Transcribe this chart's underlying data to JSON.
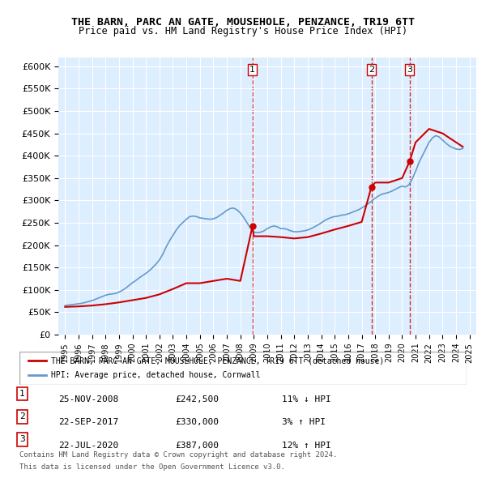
{
  "title": "THE BARN, PARC AN GATE, MOUSEHOLE, PENZANCE, TR19 6TT",
  "subtitle": "Price paid vs. HM Land Registry's House Price Index (HPI)",
  "legend_line1": "THE BARN, PARC AN GATE, MOUSEHOLE, PENZANCE, TR19 6TT (detached house)",
  "legend_line2": "HPI: Average price, detached house, Cornwall",
  "footer1": "Contains HM Land Registry data © Crown copyright and database right 2024.",
  "footer2": "This data is licensed under the Open Government Licence v3.0.",
  "transactions": [
    {
      "num": 1,
      "date": "25-NOV-2008",
      "price": 242500,
      "pct": "11%",
      "dir": "↓"
    },
    {
      "num": 2,
      "date": "22-SEP-2017",
      "price": 330000,
      "pct": "3%",
      "dir": "↑"
    },
    {
      "num": 3,
      "date": "22-JUL-2020",
      "price": 387000,
      "pct": "12%",
      "dir": "↑"
    }
  ],
  "transaction_dates_decimal": [
    2008.9,
    2017.72,
    2020.55
  ],
  "red_color": "#cc0000",
  "blue_color": "#6699cc",
  "hpi_color": "#5588bb",
  "background_chart": "#ddeeff",
  "ylim": [
    0,
    620000
  ],
  "yticks": [
    0,
    50000,
    100000,
    150000,
    200000,
    250000,
    300000,
    350000,
    400000,
    450000,
    500000,
    550000,
    600000
  ],
  "xlim_start": 1994.5,
  "xlim_end": 2025.5,
  "hpi_data": {
    "dates": [
      1995.0,
      1995.25,
      1995.5,
      1995.75,
      1996.0,
      1996.25,
      1996.5,
      1996.75,
      1997.0,
      1997.25,
      1997.5,
      1997.75,
      1998.0,
      1998.25,
      1998.5,
      1998.75,
      1999.0,
      1999.25,
      1999.5,
      1999.75,
      2000.0,
      2000.25,
      2000.5,
      2000.75,
      2001.0,
      2001.25,
      2001.5,
      2001.75,
      2002.0,
      2002.25,
      2002.5,
      2002.75,
      2003.0,
      2003.25,
      2003.5,
      2003.75,
      2004.0,
      2004.25,
      2004.5,
      2004.75,
      2005.0,
      2005.25,
      2005.5,
      2005.75,
      2006.0,
      2006.25,
      2006.5,
      2006.75,
      2007.0,
      2007.25,
      2007.5,
      2007.75,
      2008.0,
      2008.25,
      2008.5,
      2008.75,
      2009.0,
      2009.25,
      2009.5,
      2009.75,
      2010.0,
      2010.25,
      2010.5,
      2010.75,
      2011.0,
      2011.25,
      2011.5,
      2011.75,
      2012.0,
      2012.25,
      2012.5,
      2012.75,
      2013.0,
      2013.25,
      2013.5,
      2013.75,
      2014.0,
      2014.25,
      2014.5,
      2014.75,
      2015.0,
      2015.25,
      2015.5,
      2015.75,
      2016.0,
      2016.25,
      2016.5,
      2016.75,
      2017.0,
      2017.25,
      2017.5,
      2017.75,
      2018.0,
      2018.25,
      2018.5,
      2018.75,
      2019.0,
      2019.25,
      2019.5,
      2019.75,
      2020.0,
      2020.25,
      2020.5,
      2020.75,
      2021.0,
      2021.25,
      2021.5,
      2021.75,
      2022.0,
      2022.25,
      2022.5,
      2022.75,
      2023.0,
      2023.25,
      2023.5,
      2023.75,
      2024.0,
      2024.25,
      2024.5
    ],
    "values": [
      65000,
      66000,
      67000,
      68000,
      69000,
      70000,
      72000,
      74000,
      76000,
      79000,
      82000,
      85000,
      88000,
      90000,
      91000,
      92000,
      95000,
      99000,
      104000,
      110000,
      116000,
      121000,
      127000,
      132000,
      137000,
      143000,
      150000,
      158000,
      167000,
      180000,
      196000,
      210000,
      222000,
      234000,
      244000,
      251000,
      258000,
      264000,
      265000,
      264000,
      261000,
      260000,
      259000,
      258000,
      259000,
      262000,
      267000,
      272000,
      278000,
      282000,
      283000,
      279000,
      272000,
      262000,
      250000,
      238000,
      229000,
      228000,
      229000,
      232000,
      237000,
      241000,
      243000,
      241000,
      237000,
      237000,
      235000,
      232000,
      230000,
      230000,
      231000,
      232000,
      234000,
      237000,
      241000,
      245000,
      250000,
      255000,
      259000,
      262000,
      264000,
      265000,
      267000,
      268000,
      270000,
      273000,
      276000,
      279000,
      283000,
      288000,
      293000,
      299000,
      305000,
      310000,
      314000,
      316000,
      318000,
      321000,
      325000,
      329000,
      332000,
      330000,
      335000,
      348000,
      365000,
      385000,
      400000,
      415000,
      430000,
      440000,
      445000,
      442000,
      435000,
      428000,
      422000,
      418000,
      415000,
      414000,
      416000
    ]
  },
  "red_line_data": {
    "dates": [
      1995.0,
      1996.0,
      1997.0,
      1998.0,
      1999.0,
      2000.0,
      2001.0,
      2002.0,
      2003.0,
      2004.0,
      2005.0,
      2006.0,
      2007.0,
      2008.0,
      2008.9,
      2009.0,
      2010.0,
      2011.0,
      2012.0,
      2013.0,
      2014.0,
      2015.0,
      2016.0,
      2017.0,
      2017.72,
      2018.0,
      2019.0,
      2020.0,
      2020.55,
      2021.0,
      2022.0,
      2023.0,
      2024.0,
      2024.5
    ],
    "values": [
      62000,
      63000,
      65000,
      68000,
      72000,
      77000,
      82000,
      90000,
      102000,
      115000,
      115000,
      120000,
      125000,
      120000,
      242500,
      220000,
      220000,
      218000,
      215000,
      218000,
      226000,
      235000,
      243000,
      252000,
      330000,
      340000,
      340000,
      350000,
      387000,
      430000,
      460000,
      450000,
      430000,
      420000
    ]
  }
}
